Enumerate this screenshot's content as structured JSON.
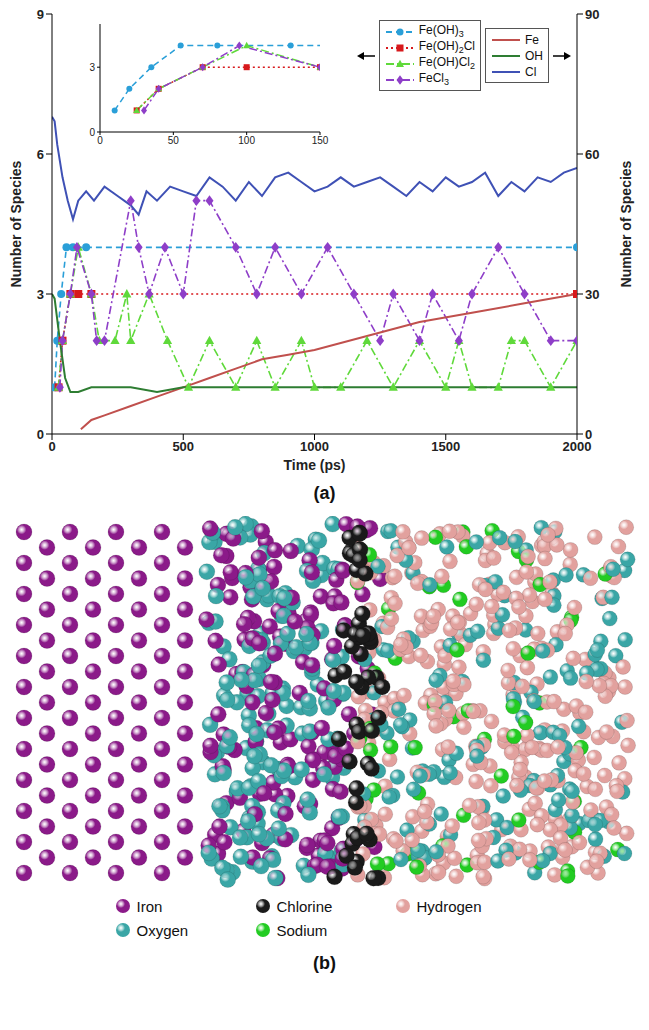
{
  "chart_data": {
    "type": "line",
    "x_label": "Time (ps)",
    "y_label": "Number of Species",
    "y2_label": "Number of Species",
    "xlim": [
      0,
      2000
    ],
    "xticks": [
      0,
      500,
      1000,
      1500,
      2000
    ],
    "ylim": [
      0,
      9
    ],
    "yticks": [
      0,
      3,
      6,
      9
    ],
    "y2lim": [
      0,
      90
    ],
    "y2ticks": [
      0,
      30,
      60,
      90
    ],
    "legend": "upper right",
    "series": [
      {
        "name": "Fe(OH)3",
        "color": "#2a9fd8",
        "marker": "circle",
        "line_style": "dashed",
        "x": [
          10,
          20,
          35,
          55,
          80,
          130,
          2000
        ],
        "values": [
          1,
          2,
          3,
          4,
          4,
          4,
          4
        ]
      },
      {
        "name": "Fe(OH)2Cl",
        "color": "#d7191c",
        "marker": "square",
        "line_style": "dotted",
        "x": [
          25,
          40,
          70,
          100,
          150,
          2000
        ],
        "values": [
          1,
          2,
          3,
          3,
          3,
          3
        ]
      },
      {
        "name": "Fe(OH)Cl2",
        "color": "#5fd93a",
        "marker": "triangle",
        "line_style": "dashdot",
        "x": [
          25,
          40,
          70,
          100,
          150,
          180,
          240,
          285,
          300,
          370,
          440,
          520,
          600,
          700,
          780,
          850,
          950,
          1000,
          1100,
          1200,
          1300,
          1400,
          1500,
          1550,
          1600,
          1700,
          1750,
          1800,
          1900,
          2000
        ],
        "values": [
          1,
          2,
          3,
          4,
          3,
          2,
          2,
          3,
          2,
          3,
          2,
          1,
          2,
          1,
          2,
          1,
          2,
          1,
          1,
          2,
          1,
          2,
          1,
          2,
          1,
          1,
          2,
          2,
          1,
          2
        ]
      },
      {
        "name": "FeCl3",
        "color": "#8e3ec8",
        "marker": "diamond",
        "line_style": "dashdot",
        "x": [
          30,
          40,
          70,
          95,
          150,
          170,
          200,
          300,
          330,
          370,
          430,
          500,
          550,
          600,
          700,
          780,
          850,
          950,
          1050,
          1150,
          1250,
          1300,
          1400,
          1450,
          1550,
          1600,
          1700,
          1800,
          1900,
          2000
        ],
        "values": [
          1,
          2,
          3,
          4,
          3,
          2,
          2,
          5,
          4,
          3,
          4,
          3,
          5,
          5,
          4,
          3,
          4,
          3,
          4,
          3,
          2,
          3,
          2,
          3,
          2,
          3,
          4,
          3,
          2,
          2
        ]
      },
      {
        "name": "Fe",
        "color": "#c0504d",
        "line_style": "solid",
        "axis": "y2",
        "x": [
          110,
          150,
          200,
          300,
          400,
          500,
          600,
          700,
          800,
          900,
          1000,
          1200,
          1400,
          1600,
          1800,
          2000
        ],
        "values": [
          1,
          3,
          4,
          6,
          8,
          10,
          12,
          14,
          16,
          17,
          18,
          21,
          24,
          26,
          28,
          30
        ]
      },
      {
        "name": "OH",
        "color": "#2e7d32",
        "line_style": "solid",
        "axis": "y2",
        "x": [
          0,
          10,
          30,
          50,
          70,
          100,
          150,
          200,
          300,
          400,
          500,
          600,
          700,
          800,
          900,
          1000,
          1200,
          1400,
          1600,
          1800,
          2000
        ],
        "values": [
          30,
          29,
          20,
          12,
          9,
          9,
          10,
          10,
          10,
          9,
          10,
          10,
          10,
          10,
          10,
          10,
          10,
          10,
          10,
          10,
          10
        ]
      },
      {
        "name": "Cl",
        "color": "#3f51b5",
        "line_style": "solid",
        "axis": "y2",
        "x": [
          0,
          10,
          20,
          40,
          60,
          80,
          100,
          130,
          160,
          200,
          250,
          300,
          330,
          360,
          400,
          450,
          500,
          550,
          600,
          650,
          700,
          750,
          800,
          850,
          900,
          950,
          1000,
          1050,
          1100,
          1150,
          1200,
          1250,
          1300,
          1350,
          1400,
          1450,
          1500,
          1550,
          1600,
          1650,
          1700,
          1750,
          1800,
          1850,
          1900,
          1950,
          2000
        ],
        "values": [
          68,
          67,
          62,
          55,
          50,
          46,
          50,
          52,
          50,
          53,
          51,
          49,
          47,
          52,
          50,
          53,
          52,
          51,
          55,
          53,
          50,
          54,
          51,
          55,
          56,
          54,
          52,
          53,
          55,
          53,
          54,
          55,
          53,
          51,
          54,
          52,
          55,
          53,
          54,
          56,
          51,
          54,
          52,
          55,
          54,
          56,
          57
        ]
      }
    ],
    "inset": {
      "series": [
        "Fe(OH)3",
        "Fe(OH)2Cl",
        "Fe(OH)Cl2",
        "FeCl3"
      ],
      "xlim": [
        0,
        150
      ],
      "xticks": [
        0,
        50,
        100,
        150
      ],
      "ylim": [
        0,
        5
      ],
      "yticks": [
        0,
        3
      ]
    }
  },
  "panel_labels": [
    "(a)",
    "(b)"
  ],
  "atom_legend": [
    {
      "label": "Iron",
      "color": "#8b1a89"
    },
    {
      "label": "Chlorine",
      "color": "#1a1a1a"
    },
    {
      "label": "Hydrogen",
      "color": "#e2a19e"
    },
    {
      "label": "Oxygen",
      "color": "#3aa6a6"
    },
    {
      "label": "Sodium",
      "color": "#22cc22"
    }
  ]
}
